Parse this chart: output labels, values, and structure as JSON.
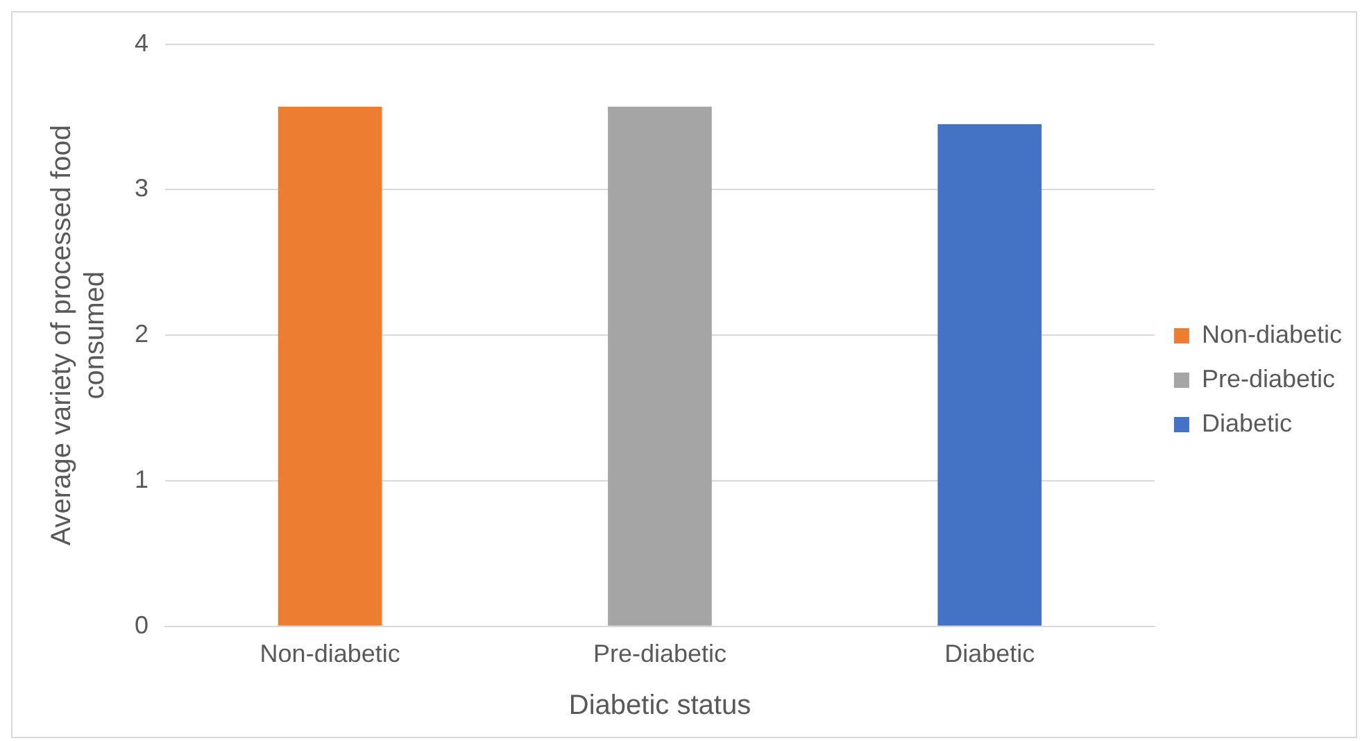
{
  "chart_data": {
    "type": "bar",
    "xlabel": "Diabetic status",
    "ylabel": "Average variety of processed food consumed",
    "categories": [
      "Non-diabetic",
      "Pre-diabetic",
      "Diabetic"
    ],
    "series": [
      {
        "name": "Non-diabetic",
        "color": "#ed7d31",
        "values": [
          3.57,
          null,
          null
        ]
      },
      {
        "name": "Pre-diabetic",
        "color": "#a5a5a5",
        "values": [
          null,
          3.57,
          null
        ]
      },
      {
        "name": "Diabetic",
        "color": "#4472c4",
        "values": [
          null,
          null,
          3.45
        ]
      }
    ],
    "ylim": [
      0,
      4
    ],
    "yticks": [
      0,
      1,
      2,
      3,
      4
    ],
    "grid": "y",
    "legend": "right"
  }
}
